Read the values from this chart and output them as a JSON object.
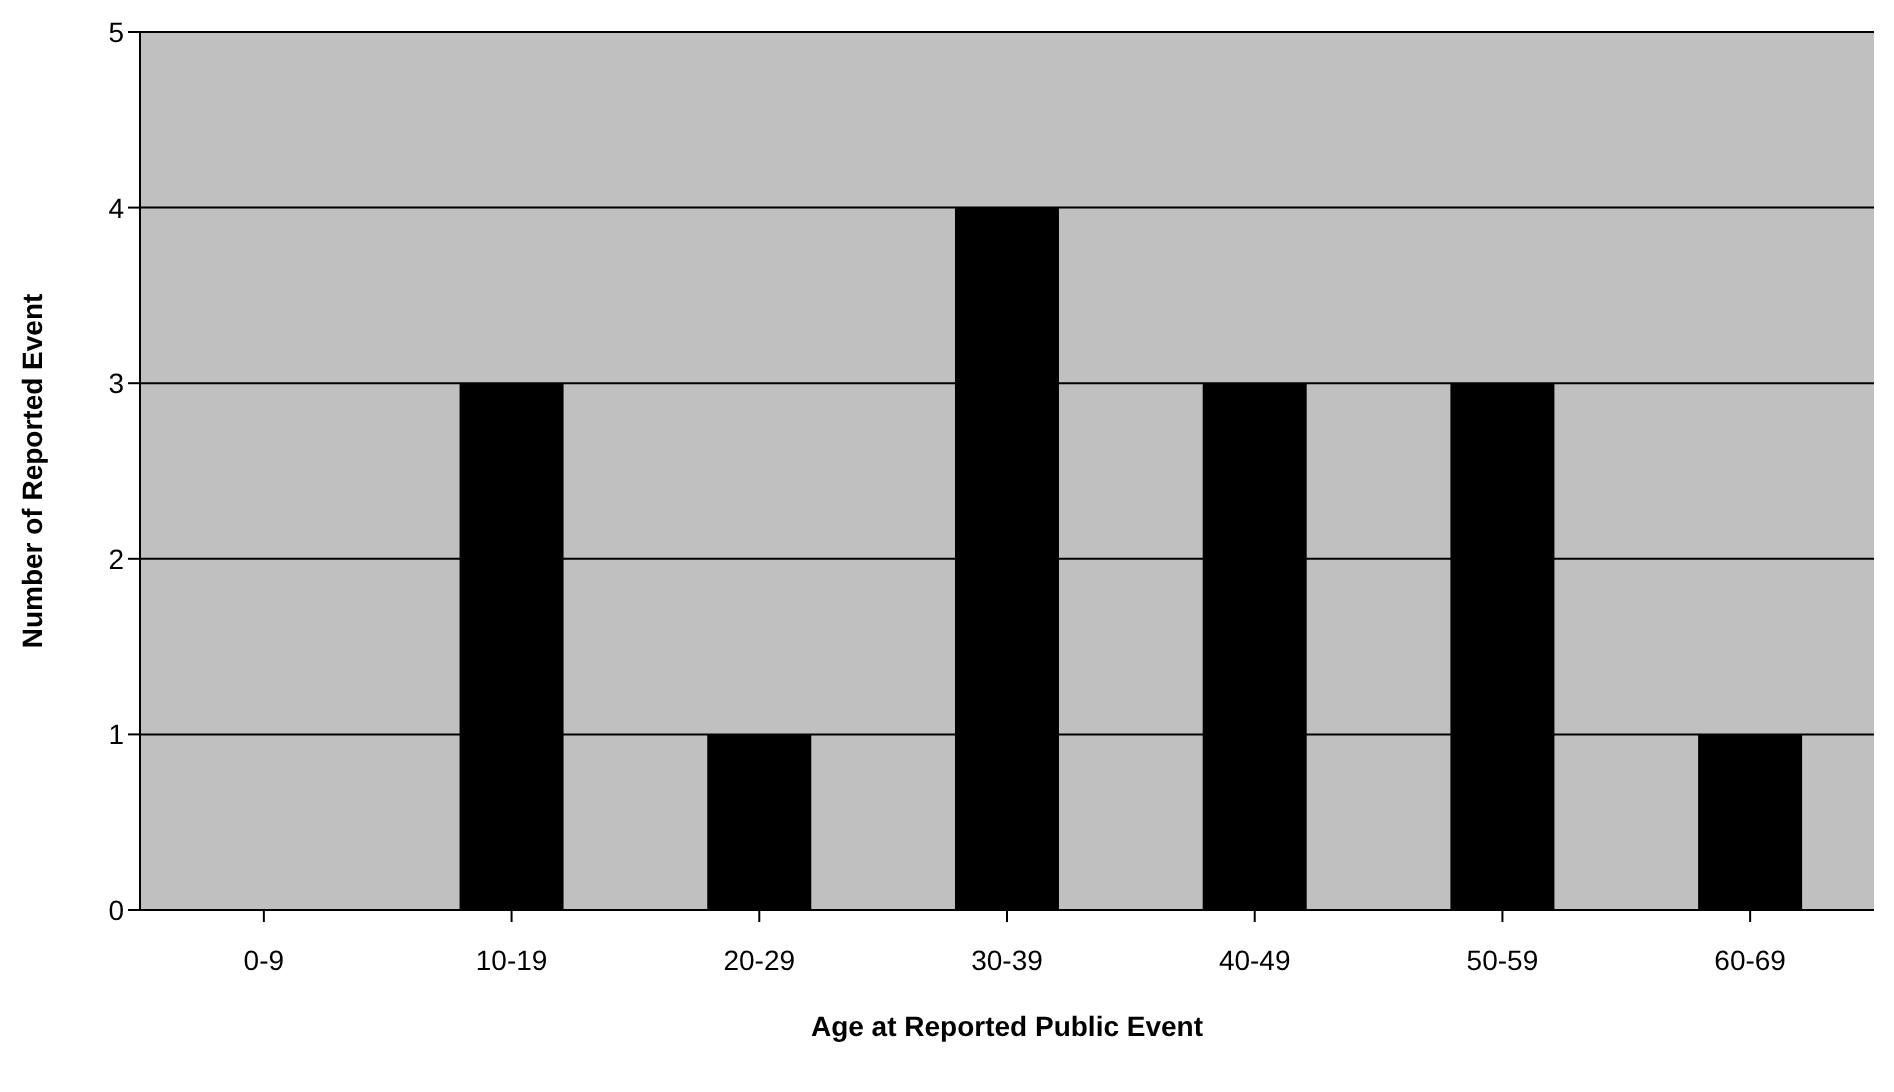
{
  "chart_data": {
    "type": "bar",
    "xlabel": "Age at Reported Public Event",
    "ylabel": "Number of Reported Event",
    "categories": [
      "0-9",
      "10-19",
      "20-29",
      "30-39",
      "40-49",
      "50-59",
      "60-69"
    ],
    "values": [
      0,
      3,
      1,
      4,
      3,
      3,
      1
    ],
    "color": "#000000",
    "ylim": [
      0,
      5
    ],
    "yticks": [
      0,
      1,
      2,
      3,
      4,
      5
    ],
    "grid": "y",
    "legend": false
  }
}
